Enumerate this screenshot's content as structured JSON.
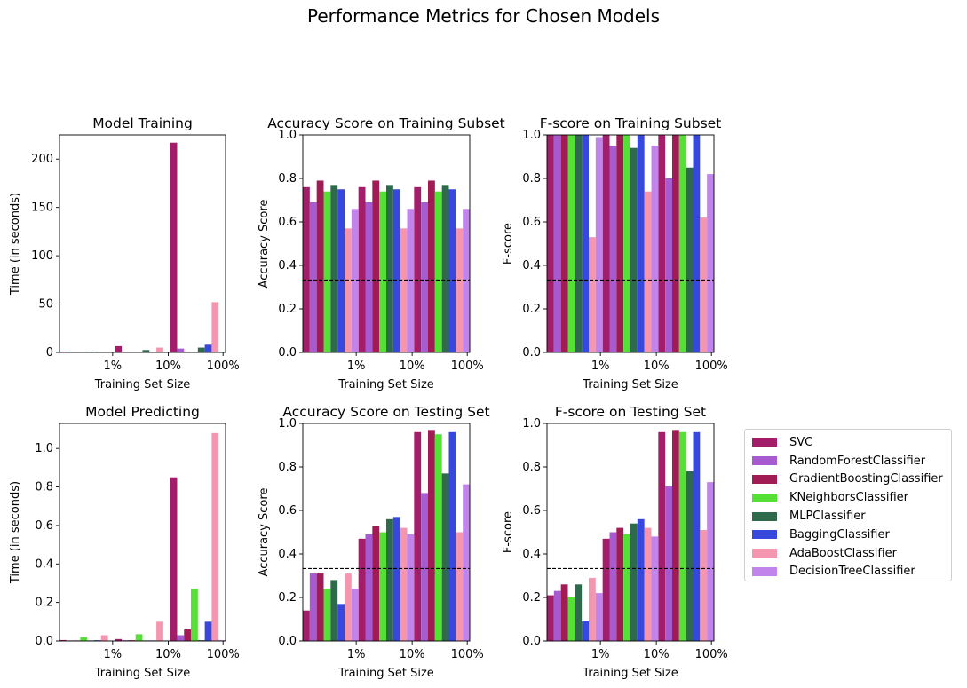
{
  "figure": {
    "title": "Performance Metrics for Chosen Models"
  },
  "colors": {
    "SVC": "#a31e69",
    "RandomForestClassifier": "#a75bd0",
    "GradientBoostingClassifier": "#a11b55",
    "KNeighborsClassifier": "#54e034",
    "MLPClassifier": "#2e6a4b",
    "BaggingClassifier": "#3748dc",
    "AdaBoostClassifier": "#f596b0",
    "DecisionTreeClassifier": "#c184ea"
  },
  "legend": {
    "placement": "right",
    "items": [
      "SVC",
      "RandomForestClassifier",
      "GradientBoostingClassifier",
      "KNeighborsClassifier",
      "MLPClassifier",
      "BaggingClassifier",
      "AdaBoostClassifier",
      "DecisionTreeClassifier"
    ]
  },
  "chart_data": [
    {
      "type": "bar",
      "title": "Model Training",
      "xlabel": "Training Set Size",
      "ylabel": "Time (in seconds)",
      "categories": [
        "1%",
        "10%",
        "100%"
      ],
      "ylim": [
        0,
        225
      ],
      "yticks": [
        0,
        50,
        100,
        150,
        200
      ],
      "baseline": null,
      "series": [
        {
          "name": "SVC",
          "values": [
            0.9,
            6.5,
            217
          ]
        },
        {
          "name": "RandomForestClassifier",
          "values": [
            0.5,
            0.6,
            4.0
          ]
        },
        {
          "name": "GradientBoostingClassifier",
          "values": [
            0.4,
            0.5,
            0.6
          ]
        },
        {
          "name": "KNeighborsClassifier",
          "values": [
            0.4,
            0.3,
            0.4
          ]
        },
        {
          "name": "MLPClassifier",
          "values": [
            0.8,
            2.5,
            5.0
          ]
        },
        {
          "name": "BaggingClassifier",
          "values": [
            0.3,
            0.5,
            8.0
          ]
        },
        {
          "name": "AdaBoostClassifier",
          "values": [
            0.4,
            5.0,
            52
          ]
        },
        {
          "name": "DecisionTreeClassifier",
          "values": [
            0.2,
            0.3,
            0.4
          ]
        }
      ]
    },
    {
      "type": "bar",
      "title": "Accuracy Score on Training Subset",
      "xlabel": "Training Set Size",
      "ylabel": "Accuracy Score",
      "categories": [
        "1%",
        "10%",
        "100%"
      ],
      "ylim": [
        0,
        1.0
      ],
      "yticks": [
        0.0,
        0.2,
        0.4,
        0.6,
        0.8,
        1.0
      ],
      "baseline": 0.333,
      "series": [
        {
          "name": "SVC",
          "values": [
            0.76,
            0.76,
            0.76
          ]
        },
        {
          "name": "RandomForestClassifier",
          "values": [
            0.69,
            0.69,
            0.69
          ]
        },
        {
          "name": "GradientBoostingClassifier",
          "values": [
            0.79,
            0.79,
            0.79
          ]
        },
        {
          "name": "KNeighborsClassifier",
          "values": [
            0.74,
            0.74,
            0.74
          ]
        },
        {
          "name": "MLPClassifier",
          "values": [
            0.77,
            0.77,
            0.77
          ]
        },
        {
          "name": "BaggingClassifier",
          "values": [
            0.75,
            0.75,
            0.75
          ]
        },
        {
          "name": "AdaBoostClassifier",
          "values": [
            0.57,
            0.57,
            0.57
          ]
        },
        {
          "name": "DecisionTreeClassifier",
          "values": [
            0.66,
            0.66,
            0.66
          ]
        }
      ]
    },
    {
      "type": "bar",
      "title": "F-score on Training Subset",
      "xlabel": "Training Set Size",
      "ylabel": "F-score",
      "categories": [
        "1%",
        "10%",
        "100%"
      ],
      "ylim": [
        0,
        1.0
      ],
      "yticks": [
        0.0,
        0.2,
        0.4,
        0.6,
        0.8,
        1.0
      ],
      "baseline": 0.333,
      "series": [
        {
          "name": "SVC",
          "values": [
            1.0,
            1.0,
            1.0
          ]
        },
        {
          "name": "RandomForestClassifier",
          "values": [
            1.0,
            0.95,
            0.8
          ]
        },
        {
          "name": "GradientBoostingClassifier",
          "values": [
            1.0,
            1.0,
            1.0
          ]
        },
        {
          "name": "KNeighborsClassifier",
          "values": [
            1.0,
            1.0,
            1.0
          ]
        },
        {
          "name": "MLPClassifier",
          "values": [
            1.0,
            0.94,
            0.85
          ]
        },
        {
          "name": "BaggingClassifier",
          "values": [
            1.0,
            1.0,
            1.0
          ]
        },
        {
          "name": "AdaBoostClassifier",
          "values": [
            0.53,
            0.74,
            0.62
          ]
        },
        {
          "name": "DecisionTreeClassifier",
          "values": [
            0.99,
            0.95,
            0.82
          ]
        }
      ]
    },
    {
      "type": "bar",
      "title": "Model Predicting",
      "xlabel": "Training Set Size",
      "ylabel": "Time (in seconds)",
      "categories": [
        "1%",
        "10%",
        "100%"
      ],
      "ylim": [
        0,
        1.13
      ],
      "yticks": [
        0.0,
        0.2,
        0.4,
        0.6,
        0.8,
        1.0
      ],
      "baseline": null,
      "series": [
        {
          "name": "SVC",
          "values": [
            0.005,
            0.01,
            0.85
          ]
        },
        {
          "name": "RandomForestClassifier",
          "values": [
            0.003,
            0.004,
            0.03
          ]
        },
        {
          "name": "GradientBoostingClassifier",
          "values": [
            0.003,
            0.004,
            0.06
          ]
        },
        {
          "name": "KNeighborsClassifier",
          "values": [
            0.02,
            0.035,
            0.27
          ]
        },
        {
          "name": "MLPClassifier",
          "values": [
            0.003,
            0.003,
            0.004
          ]
        },
        {
          "name": "BaggingClassifier",
          "values": [
            0.004,
            0.003,
            0.1
          ]
        },
        {
          "name": "AdaBoostClassifier",
          "values": [
            0.03,
            0.1,
            1.08
          ]
        },
        {
          "name": "DecisionTreeClassifier",
          "values": [
            0.002,
            0.003,
            0.004
          ]
        }
      ]
    },
    {
      "type": "bar",
      "title": "Accuracy Score on Testing Set",
      "xlabel": "Training Set Size",
      "ylabel": "Accuracy Score",
      "categories": [
        "1%",
        "10%",
        "100%"
      ],
      "ylim": [
        0,
        1.0
      ],
      "yticks": [
        0.0,
        0.2,
        0.4,
        0.6,
        0.8,
        1.0
      ],
      "baseline": 0.333,
      "series": [
        {
          "name": "SVC",
          "values": [
            0.14,
            0.47,
            0.96
          ]
        },
        {
          "name": "RandomForestClassifier",
          "values": [
            0.31,
            0.49,
            0.68
          ]
        },
        {
          "name": "GradientBoostingClassifier",
          "values": [
            0.31,
            0.53,
            0.97
          ]
        },
        {
          "name": "KNeighborsClassifier",
          "values": [
            0.24,
            0.5,
            0.95
          ]
        },
        {
          "name": "MLPClassifier",
          "values": [
            0.28,
            0.56,
            0.77
          ]
        },
        {
          "name": "BaggingClassifier",
          "values": [
            0.17,
            0.57,
            0.96
          ]
        },
        {
          "name": "AdaBoostClassifier",
          "values": [
            0.31,
            0.52,
            0.5
          ]
        },
        {
          "name": "DecisionTreeClassifier",
          "values": [
            0.24,
            0.49,
            0.72
          ]
        }
      ]
    },
    {
      "type": "bar",
      "title": "F-score on Testing Set",
      "xlabel": "Training Set Size",
      "ylabel": "F-score",
      "categories": [
        "1%",
        "10%",
        "100%"
      ],
      "ylim": [
        0,
        1.0
      ],
      "yticks": [
        0.0,
        0.2,
        0.4,
        0.6,
        0.8,
        1.0
      ],
      "baseline": 0.333,
      "series": [
        {
          "name": "SVC",
          "values": [
            0.21,
            0.47,
            0.96
          ]
        },
        {
          "name": "RandomForestClassifier",
          "values": [
            0.23,
            0.5,
            0.71
          ]
        },
        {
          "name": "GradientBoostingClassifier",
          "values": [
            0.26,
            0.52,
            0.97
          ]
        },
        {
          "name": "KNeighborsClassifier",
          "values": [
            0.2,
            0.49,
            0.96
          ]
        },
        {
          "name": "MLPClassifier",
          "values": [
            0.26,
            0.54,
            0.78
          ]
        },
        {
          "name": "BaggingClassifier",
          "values": [
            0.09,
            0.56,
            0.96
          ]
        },
        {
          "name": "AdaBoostClassifier",
          "values": [
            0.29,
            0.52,
            0.51
          ]
        },
        {
          "name": "DecisionTreeClassifier",
          "values": [
            0.22,
            0.48,
            0.73
          ]
        }
      ]
    }
  ]
}
